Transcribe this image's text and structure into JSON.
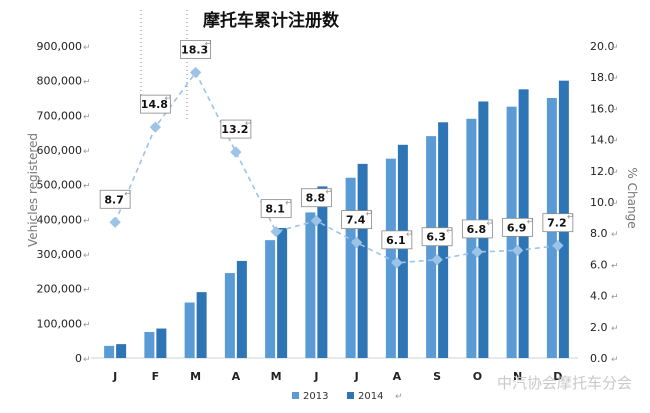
{
  "chart_data": {
    "type": "bar",
    "title": "摩托车累计注册数",
    "categories": [
      "J",
      "F",
      "M",
      "A",
      "M",
      "J",
      "J",
      "A",
      "S",
      "O",
      "N",
      "D"
    ],
    "series": [
      {
        "name": "2013",
        "type": "bar",
        "axis": "left",
        "color": "#5b9bd5",
        "values": [
          35000,
          75000,
          160000,
          245000,
          340000,
          420000,
          520000,
          575000,
          640000,
          690000,
          725000,
          750000
        ]
      },
      {
        "name": "2014",
        "type": "bar",
        "axis": "left",
        "color": "#2e75b6",
        "values": [
          40000,
          85000,
          190000,
          280000,
          375000,
          495000,
          560000,
          615000,
          680000,
          740000,
          775000,
          800000
        ]
      },
      {
        "name": "",
        "type": "line",
        "axis": "right",
        "color": "#9dc3e6",
        "values": [
          8.7,
          14.8,
          18.3,
          13.2,
          8.1,
          8.8,
          7.4,
          6.1,
          6.3,
          6.8,
          6.9,
          7.2
        ],
        "labels": [
          "8.7",
          "14.8",
          "18.3",
          "13.2",
          "8.1",
          "8.8",
          "7.4",
          "6.1",
          "6.3",
          "6.8",
          "6.9",
          "7.2"
        ]
      }
    ],
    "ylabel": "Vehicles registered",
    "ylabel_right": "% Change",
    "ylim": [
      0,
      900000
    ],
    "ylim_right": [
      0,
      20
    ],
    "yticks": [
      "0",
      "100,000",
      "200,000",
      "300,000",
      "400,000",
      "500,000",
      "600,000",
      "700,000",
      "800,000",
      "900,000"
    ],
    "yticks_right": [
      "0.0",
      "2.0",
      "4.0",
      "6.0",
      "8.0",
      "10.0",
      "12.0",
      "14.0",
      "16.0",
      "18.0",
      "20.0"
    ],
    "grid": false,
    "legend": {
      "position": "bottom-center",
      "entries": [
        "2013",
        "2014"
      ]
    }
  },
  "watermark": "中汽协会摩托车分会",
  "return_mark": "↵"
}
